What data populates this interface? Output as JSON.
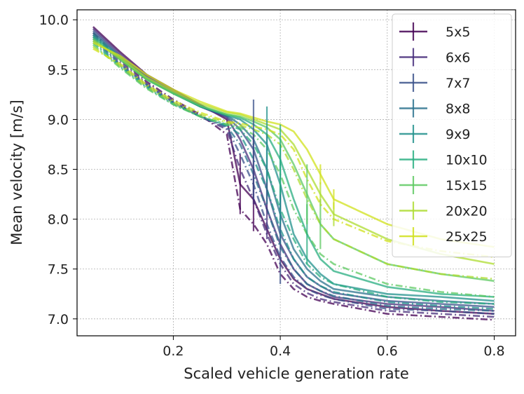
{
  "chart_data": {
    "type": "line",
    "xlabel": "Scaled vehicle generation rate",
    "ylabel": "Mean velocity [m/s]",
    "xlim": [
      0.02,
      0.84
    ],
    "ylim": [
      6.83,
      10.1
    ],
    "xticks": [
      0.2,
      0.4,
      0.6,
      0.8
    ],
    "xtick_labels": [
      "0.2",
      "0.4",
      "0.6",
      "0.8"
    ],
    "yticks": [
      7.0,
      7.5,
      8.0,
      8.5,
      9.0,
      9.5,
      10.0
    ],
    "ytick_labels": [
      "7.0",
      "7.5",
      "8.0",
      "8.5",
      "9.0",
      "9.5",
      "10.0"
    ],
    "grid": true,
    "legend_position": "top-right",
    "x": [
      0.05,
      0.1,
      0.15,
      0.2,
      0.25,
      0.3,
      0.325,
      0.35,
      0.375,
      0.4,
      0.425,
      0.45,
      0.475,
      0.5,
      0.6,
      0.7,
      0.8
    ],
    "series": [
      {
        "name": "5x5",
        "color": "#440154",
        "solid": [
          9.93,
          9.68,
          9.45,
          9.3,
          9.15,
          9.0,
          8.35,
          8.2,
          7.9,
          7.6,
          7.4,
          7.3,
          7.25,
          7.2,
          7.12,
          7.08,
          7.05
        ],
        "dashed": [
          9.87,
          9.6,
          9.38,
          9.2,
          9.05,
          8.85,
          8.1,
          7.95,
          7.75,
          7.45,
          7.3,
          7.22,
          7.18,
          7.15,
          7.05,
          7.02,
          6.99
        ],
        "err_x": [
          0.325,
          0.35
        ],
        "err_y": [
          8.35,
          8.2
        ],
        "err_size": [
          0.3,
          0.32
        ]
      },
      {
        "name": "6x6",
        "color": "#472d7b",
        "solid": [
          9.91,
          9.66,
          9.43,
          9.28,
          9.13,
          9.02,
          8.8,
          8.5,
          8.1,
          7.75,
          7.5,
          7.35,
          7.28,
          7.22,
          7.15,
          7.12,
          7.08
        ],
        "dashed": [
          9.85,
          9.58,
          9.36,
          9.18,
          9.03,
          8.9,
          8.5,
          8.2,
          7.85,
          7.55,
          7.35,
          7.26,
          7.2,
          7.17,
          7.08,
          7.05,
          7.02
        ],
        "err_x": [
          0.35,
          0.375
        ],
        "err_y": [
          8.5,
          8.1
        ],
        "err_size": [
          0.35,
          0.3
        ]
      },
      {
        "name": "7x7",
        "color": "#3b528b",
        "solid": [
          9.89,
          9.64,
          9.42,
          9.27,
          9.13,
          9.03,
          8.9,
          8.7,
          8.3,
          7.85,
          7.6,
          7.42,
          7.33,
          7.26,
          7.18,
          7.15,
          7.12
        ],
        "dashed": [
          9.83,
          9.56,
          9.35,
          9.17,
          9.03,
          8.92,
          8.65,
          8.35,
          7.95,
          7.62,
          7.42,
          7.3,
          7.24,
          7.2,
          7.1,
          7.08,
          7.05
        ],
        "err_x": [
          0.35,
          0.4
        ],
        "err_y": [
          8.7,
          7.85
        ],
        "err_size": [
          0.5,
          0.5
        ]
      },
      {
        "name": "8x8",
        "color": "#2c728e",
        "solid": [
          9.87,
          9.63,
          9.42,
          9.27,
          9.13,
          9.04,
          8.95,
          8.8,
          8.5,
          8.05,
          7.7,
          7.5,
          7.38,
          7.3,
          7.22,
          7.18,
          7.15
        ],
        "dashed": [
          9.81,
          9.55,
          9.34,
          9.17,
          9.03,
          8.93,
          8.75,
          8.45,
          8.1,
          7.72,
          7.5,
          7.35,
          7.28,
          7.23,
          7.13,
          7.1,
          7.08
        ],
        "err_x": [
          0.375,
          0.4
        ],
        "err_y": [
          8.5,
          8.05
        ],
        "err_size": [
          0.35,
          0.3
        ]
      },
      {
        "name": "9x9",
        "color": "#21918c",
        "solid": [
          9.85,
          9.62,
          9.41,
          9.26,
          9.13,
          9.04,
          9.0,
          8.9,
          8.75,
          8.35,
          7.85,
          7.6,
          7.45,
          7.35,
          7.25,
          7.22,
          7.18
        ],
        "dashed": [
          9.79,
          9.54,
          9.33,
          9.16,
          9.03,
          8.94,
          8.85,
          8.6,
          8.3,
          7.9,
          7.6,
          7.42,
          7.33,
          7.27,
          7.17,
          7.13,
          7.1
        ],
        "err_x": [
          0.375,
          0.4
        ],
        "err_y": [
          8.75,
          8.35
        ],
        "err_size": [
          0.38,
          0.4
        ]
      },
      {
        "name": "10x10",
        "color": "#28ae80",
        "solid": [
          9.83,
          9.61,
          9.4,
          9.26,
          9.13,
          9.05,
          9.02,
          8.95,
          8.85,
          8.6,
          8.2,
          7.85,
          7.6,
          7.48,
          7.32,
          7.25,
          7.22
        ],
        "dashed": [
          9.77,
          9.53,
          9.32,
          9.15,
          9.03,
          8.95,
          8.9,
          8.75,
          8.5,
          8.1,
          7.8,
          7.55,
          7.42,
          7.35,
          7.22,
          7.17,
          7.15
        ],
        "err_x": [
          0.4,
          0.45
        ],
        "err_y": [
          8.6,
          7.85
        ],
        "err_size": [
          0.35,
          0.3
        ]
      },
      {
        "name": "15x15",
        "color": "#5ec962",
        "solid": [
          9.81,
          9.6,
          9.4,
          9.26,
          9.14,
          9.05,
          9.03,
          8.98,
          8.92,
          8.8,
          8.55,
          8.25,
          7.95,
          7.8,
          7.55,
          7.45,
          7.38
        ],
        "dashed": [
          9.75,
          9.52,
          9.31,
          9.15,
          9.03,
          8.95,
          8.92,
          8.85,
          8.7,
          8.45,
          8.1,
          7.85,
          7.65,
          7.55,
          7.35,
          7.27,
          7.22
        ],
        "err_x": [
          0.45,
          0.475
        ],
        "err_y": [
          8.25,
          7.95
        ],
        "err_size": [
          0.3,
          0.25
        ]
      },
      {
        "name": "20x20",
        "color": "#addc30",
        "solid": [
          9.79,
          9.62,
          9.42,
          9.28,
          9.16,
          9.07,
          9.05,
          9.0,
          8.95,
          8.9,
          8.75,
          8.5,
          8.25,
          8.05,
          7.8,
          7.65,
          7.55
        ],
        "dashed": [
          9.73,
          9.54,
          9.33,
          9.17,
          9.05,
          8.97,
          8.94,
          8.9,
          8.85,
          8.75,
          8.5,
          8.2,
          7.95,
          7.8,
          7.55,
          7.45,
          7.4
        ],
        "err_x": [
          0.475,
          0.5
        ],
        "err_y": [
          8.25,
          8.05
        ],
        "err_size": [
          0.12,
          0.12
        ]
      },
      {
        "name": "25x25",
        "color": "#d0e11c",
        "solid": [
          9.77,
          9.64,
          9.45,
          9.3,
          9.18,
          9.08,
          9.06,
          9.02,
          8.98,
          8.95,
          8.88,
          8.7,
          8.45,
          8.2,
          7.95,
          7.8,
          7.72
        ],
        "dashed": [
          9.71,
          9.56,
          9.35,
          9.19,
          9.07,
          8.98,
          8.96,
          8.93,
          8.9,
          8.85,
          8.7,
          8.4,
          8.15,
          8.0,
          7.78,
          7.68,
          7.62
        ],
        "err_x": [
          0.475,
          0.5
        ],
        "err_y": [
          8.45,
          8.2
        ],
        "err_size": [
          0.1,
          0.1
        ]
      }
    ]
  }
}
